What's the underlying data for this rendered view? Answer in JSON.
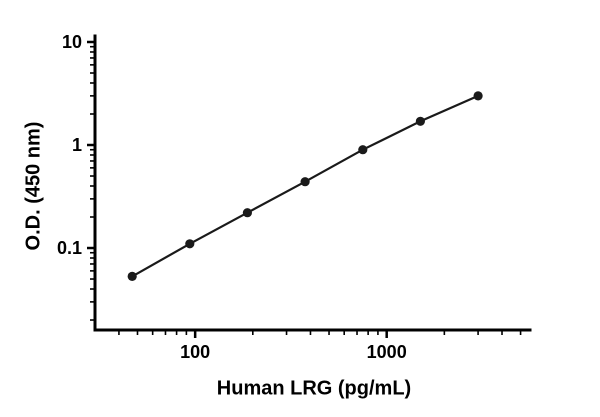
{
  "chart_data": {
    "type": "scatter",
    "title": "",
    "xlabel": "Human LRG (pg/mL)",
    "ylabel": "O.D. (450 nm)",
    "x_scale": "log",
    "y_scale": "log",
    "xlim": [
      30,
      5600
    ],
    "ylim": [
      0.016,
      10
    ],
    "x_major_ticks": [
      100,
      1000
    ],
    "y_major_ticks": [
      0.1,
      1,
      10
    ],
    "grid": "off",
    "legend": "none",
    "series": [
      {
        "x": [
          46.9,
          93.8,
          187.5,
          375,
          750,
          1500,
          3000
        ],
        "y": [
          0.053,
          0.11,
          0.22,
          0.44,
          0.9,
          1.7,
          3.0
        ]
      }
    ],
    "axis_color": "#000000",
    "line_color": "#1a1a1a",
    "marker_color": "#1a1a1a",
    "background": "#ffffff"
  }
}
